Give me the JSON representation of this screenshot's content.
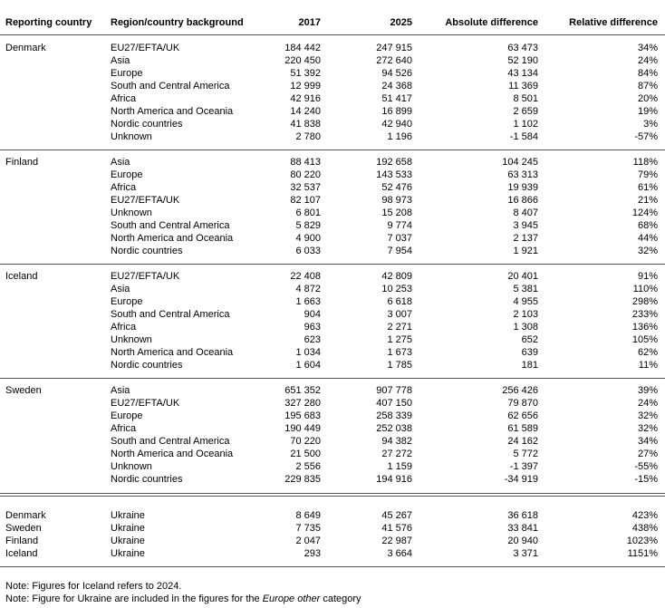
{
  "table": {
    "header": [
      "Reporting country",
      "Region/country background",
      "2017",
      "2025",
      "Absolute difference",
      "Relative difference"
    ],
    "groups": [
      {
        "country": "Denmark",
        "rows": [
          [
            "EU27/EFTA/UK",
            "184 442",
            "247 915",
            "63 473",
            "34%"
          ],
          [
            "Asia",
            "220 450",
            "272 640",
            "52 190",
            "24%"
          ],
          [
            "Europe",
            "51 392",
            "94 526",
            "43 134",
            "84%"
          ],
          [
            "South and Central America",
            "12 999",
            "24 368",
            "11 369",
            "87%"
          ],
          [
            "Africa",
            "42 916",
            "51 417",
            "8 501",
            "20%"
          ],
          [
            "North America and Oceania",
            "14 240",
            "16 899",
            "2 659",
            "19%"
          ],
          [
            "Nordic countries",
            "41 838",
            "42 940",
            "1 102",
            "3%"
          ],
          [
            "Unknown",
            "2 780",
            "1 196",
            "-1 584",
            "-57%"
          ]
        ]
      },
      {
        "country": "Finland",
        "rows": [
          [
            "Asia",
            "88 413",
            "192 658",
            "104 245",
            "118%"
          ],
          [
            "Europe",
            "80 220",
            "143 533",
            "63 313",
            "79%"
          ],
          [
            "Africa",
            "32 537",
            "52 476",
            "19 939",
            "61%"
          ],
          [
            "EU27/EFTA/UK",
            "82 107",
            "98 973",
            "16 866",
            "21%"
          ],
          [
            "Unknown",
            "6 801",
            "15 208",
            "8 407",
            "124%"
          ],
          [
            "South and Central America",
            "5 829",
            "9 774",
            "3 945",
            "68%"
          ],
          [
            "North America and Oceania",
            "4 900",
            "7 037",
            "2 137",
            "44%"
          ],
          [
            "Nordic countries",
            "6 033",
            "7 954",
            "1 921",
            "32%"
          ]
        ]
      },
      {
        "country": "Iceland",
        "rows": [
          [
            "EU27/EFTA/UK",
            "22 408",
            "42 809",
            "20 401",
            "91%"
          ],
          [
            "Asia",
            "4 872",
            "10 253",
            "5 381",
            "110%"
          ],
          [
            "Europe",
            "1 663",
            "6 618",
            "4 955",
            "298%"
          ],
          [
            "South and Central America",
            "904",
            "3 007",
            "2 103",
            "233%"
          ],
          [
            "Africa",
            "963",
            "2 271",
            "1 308",
            "136%"
          ],
          [
            "Unknown",
            "623",
            "1 275",
            "652",
            "105%"
          ],
          [
            "North America and Oceania",
            "1 034",
            "1 673",
            "639",
            "62%"
          ],
          [
            "Nordic countries",
            "1 604",
            "1 785",
            "181",
            "11%"
          ]
        ]
      },
      {
        "country": "Sweden",
        "rows": [
          [
            "Asia",
            "651 352",
            "907 778",
            "256 426",
            "39%"
          ],
          [
            "EU27/EFTA/UK",
            "327 280",
            "407 150",
            "79 870",
            "24%"
          ],
          [
            "Europe",
            "195 683",
            "258 339",
            "62 656",
            "32%"
          ],
          [
            "Africa",
            "190 449",
            "252 038",
            "61 589",
            "32%"
          ],
          [
            "South and Central America",
            "70 220",
            "94 382",
            "24 162",
            "34%"
          ],
          [
            "North America and Oceania",
            "21 500",
            "27 272",
            "5 772",
            "27%"
          ],
          [
            "Unknown",
            "2 556",
            "1 159",
            "-1 397",
            "-55%"
          ],
          [
            "Nordic countries",
            "229 835",
            "194 916",
            "-34 919",
            "-15%"
          ]
        ]
      }
    ],
    "ukraine_rows": [
      [
        "Denmark",
        "Ukraine",
        "8 649",
        "45 267",
        "36 618",
        "423%"
      ],
      [
        "Sweden",
        "Ukraine",
        "7 735",
        "41 576",
        "33 841",
        "438%"
      ],
      [
        "Finland",
        "Ukraine",
        "2 047",
        "22 987",
        "20 940",
        "1023%"
      ],
      [
        "Iceland",
        "Ukraine",
        "293",
        "3 664",
        "3 371",
        "1151%"
      ]
    ]
  },
  "notes": {
    "note1": "Note: Figures for Iceland refers to 2024.",
    "note2": {
      "before": "Note: Figure for Ukraine are included in the figures for the ",
      "italic": "Europe other",
      "after": " category"
    }
  }
}
